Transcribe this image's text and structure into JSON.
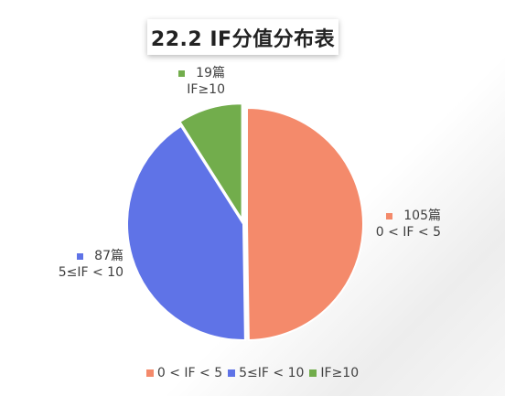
{
  "chart_data": {
    "type": "pie",
    "title": "22.2 IF分值分布表",
    "categories": [
      "0 < IF < 5",
      "5≤IF < 10",
      "IF≥10"
    ],
    "values": [
      105,
      87,
      19
    ],
    "value_labels": [
      "105篇",
      "87篇",
      "19篇"
    ],
    "colors": [
      "#F48A6B",
      "#5F73E7",
      "#72AD4C"
    ],
    "legend_position": "bottom"
  }
}
